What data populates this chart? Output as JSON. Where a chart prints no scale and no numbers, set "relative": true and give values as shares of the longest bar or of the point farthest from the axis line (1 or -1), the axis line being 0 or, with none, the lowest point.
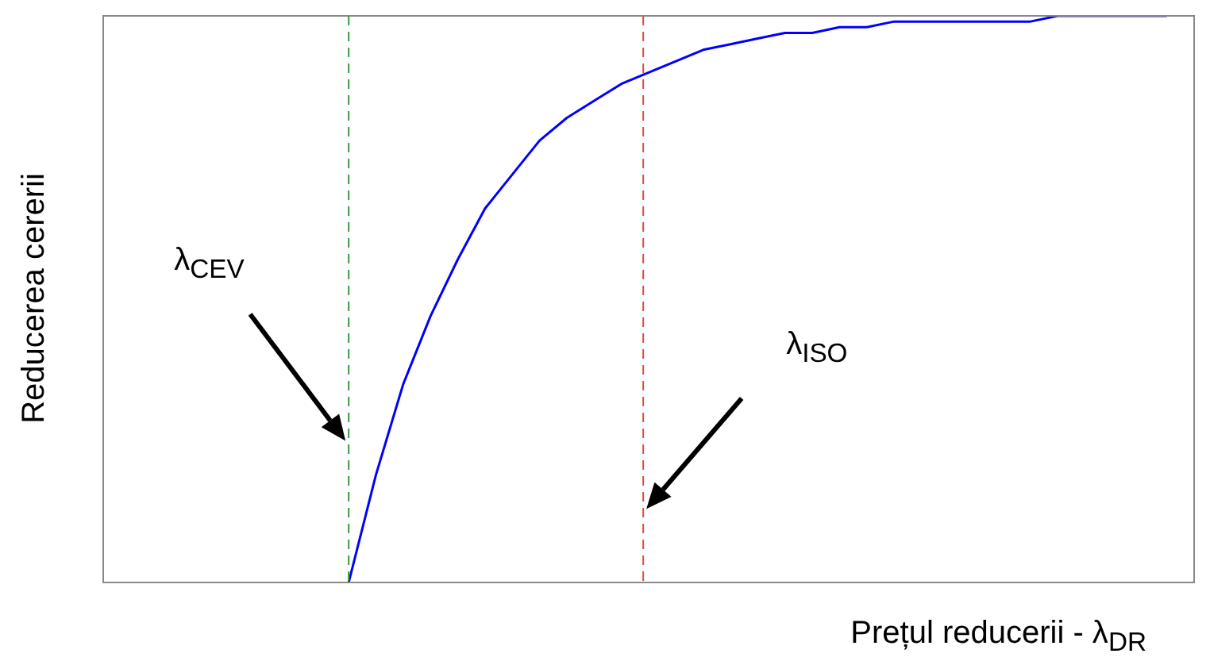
{
  "chart_data": {
    "type": "line",
    "relative": true,
    "xlabel": "Prețul reducerii - λ$_{DR}$",
    "ylabel": "Reducerea cererii",
    "categories": [
      null,
      null,
      null,
      null,
      null,
      null,
      null,
      null,
      null,
      null,
      null,
      null,
      null,
      null,
      null,
      null,
      null,
      null,
      null,
      null,
      null,
      null,
      null,
      null,
      null,
      null,
      null,
      null,
      null,
      null,
      null,
      null,
      null,
      null,
      null,
      null,
      null,
      null,
      null,
      null,
      null
    ],
    "series": [
      {
        "color": "#0000ff",
        "values": [
          null,
          null,
          null,
          null,
          null,
          null,
          null,
          null,
          null,
          0,
          0.19,
          0.35,
          0.47,
          0.57,
          0.66,
          0.72,
          0.78,
          0.82,
          0.85,
          0.88,
          0.9,
          0.92,
          0.94,
          0.95,
          0.96,
          0.97,
          0.97,
          0.98,
          0.98,
          0.99,
          0.99,
          0.99,
          0.99,
          0.99,
          0.99,
          1,
          1,
          1,
          1,
          1,
          null
        ]
      }
    ],
    "annotations": [
      "λ$_{CEV}$",
      "λ$_{ISO}$"
    ],
    "marker": "none",
    "line_style": "solid"
  }
}
